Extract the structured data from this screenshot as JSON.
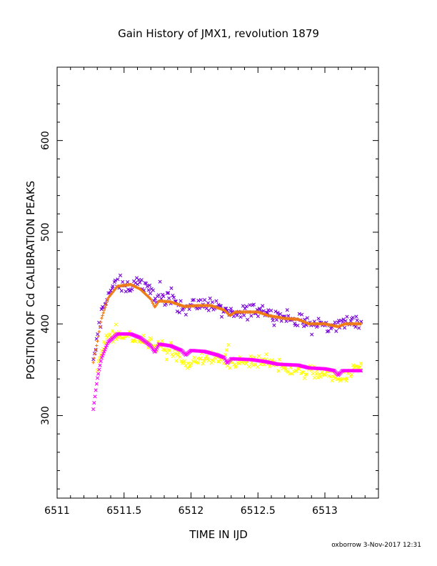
{
  "chart_data": {
    "type": "scatter",
    "title": "Gain History of JMX1, revolution 1879",
    "xlabel": "TIME IN IJD",
    "ylabel": "POSITION OF Cd CALIBRATION PEAKS",
    "xlim": [
      6511.0,
      6513.4
    ],
    "ylim": [
      210,
      680
    ],
    "xticks": [
      6511,
      6511.5,
      6512,
      6512.5,
      6513
    ],
    "xtick_labels": [
      "6511",
      "6511.5",
      "6512",
      "6512.5",
      "6513"
    ],
    "yticks": [
      300,
      400,
      500,
      600
    ],
    "ytick_labels": [
      "300",
      "400",
      "500",
      "600"
    ],
    "grid": false,
    "x_start": 6511.27,
    "x_end": 6513.27,
    "series": [
      {
        "color": "#7700dd",
        "marker": "x",
        "style": "noisy",
        "noise": 8,
        "knots": [
          [
            6511.27,
            358
          ],
          [
            6511.33,
            410
          ],
          [
            6511.38,
            433
          ],
          [
            6511.45,
            445
          ],
          [
            6511.55,
            440
          ],
          [
            6511.6,
            448
          ],
          [
            6511.7,
            435
          ],
          [
            6511.8,
            428
          ],
          [
            6511.95,
            418
          ],
          [
            6512.1,
            422
          ],
          [
            6512.2,
            418
          ],
          [
            6512.3,
            410
          ],
          [
            6512.4,
            412
          ],
          [
            6512.5,
            418
          ],
          [
            6512.6,
            410
          ],
          [
            6512.75,
            405
          ],
          [
            6512.9,
            400
          ],
          [
            6513.05,
            398
          ],
          [
            6513.15,
            402
          ],
          [
            6513.27,
            402
          ]
        ]
      },
      {
        "color": "#ee7a12",
        "marker": "+",
        "style": "smooth",
        "noise": 0,
        "knots": [
          [
            6511.27,
            358
          ],
          [
            6511.3,
            380
          ],
          [
            6511.33,
            405
          ],
          [
            6511.38,
            428
          ],
          [
            6511.45,
            441
          ],
          [
            6511.55,
            443
          ],
          [
            6511.62,
            438
          ],
          [
            6511.7,
            427
          ],
          [
            6511.73,
            418
          ],
          [
            6511.76,
            425
          ],
          [
            6511.85,
            424
          ],
          [
            6511.95,
            419
          ],
          [
            6512.05,
            420
          ],
          [
            6512.15,
            420
          ],
          [
            6512.25,
            415
          ],
          [
            6512.29,
            409
          ],
          [
            6512.33,
            413
          ],
          [
            6512.5,
            413
          ],
          [
            6512.58,
            409
          ],
          [
            6512.7,
            406
          ],
          [
            6512.8,
            405
          ],
          [
            6512.88,
            400
          ],
          [
            6513.0,
            400
          ],
          [
            6513.1,
            397
          ],
          [
            6513.15,
            400
          ],
          [
            6513.27,
            400
          ]
        ]
      },
      {
        "color": "#ffff00",
        "marker": "x",
        "style": "noisy",
        "noise": 7,
        "knots": [
          [
            6511.3,
            355
          ],
          [
            6511.35,
            380
          ],
          [
            6511.42,
            390
          ],
          [
            6511.55,
            386
          ],
          [
            6511.65,
            380
          ],
          [
            6511.75,
            375
          ],
          [
            6511.9,
            365
          ],
          [
            6511.98,
            355
          ],
          [
            6512.1,
            362
          ],
          [
            6512.25,
            360
          ],
          [
            6512.4,
            358
          ],
          [
            6512.55,
            362
          ],
          [
            6512.7,
            352
          ],
          [
            6512.85,
            348
          ],
          [
            6513.0,
            345
          ],
          [
            6513.1,
            338
          ],
          [
            6513.18,
            345
          ],
          [
            6513.27,
            355
          ]
        ]
      },
      {
        "color": "#ff00ff",
        "marker": "x",
        "style": "smooth",
        "noise": 0,
        "knots": [
          [
            6511.27,
            307
          ],
          [
            6511.3,
            340
          ],
          [
            6511.33,
            362
          ],
          [
            6511.38,
            380
          ],
          [
            6511.45,
            389
          ],
          [
            6511.55,
            389
          ],
          [
            6511.62,
            385
          ],
          [
            6511.7,
            376
          ],
          [
            6511.73,
            369
          ],
          [
            6511.76,
            378
          ],
          [
            6511.85,
            376
          ],
          [
            6511.93,
            371
          ],
          [
            6511.96,
            366
          ],
          [
            6512.0,
            371
          ],
          [
            6512.1,
            370
          ],
          [
            6512.2,
            366
          ],
          [
            6512.25,
            363
          ],
          [
            6512.27,
            357
          ],
          [
            6512.3,
            362
          ],
          [
            6512.45,
            361
          ],
          [
            6512.55,
            359
          ],
          [
            6512.65,
            356
          ],
          [
            6512.8,
            355
          ],
          [
            6512.88,
            352
          ],
          [
            6513.0,
            351
          ],
          [
            6513.07,
            349
          ],
          [
            6513.1,
            344
          ],
          [
            6513.13,
            349
          ],
          [
            6513.27,
            349
          ]
        ]
      }
    ]
  },
  "footer": {
    "text": "oxborrow  3-Nov-2017 12:31"
  }
}
